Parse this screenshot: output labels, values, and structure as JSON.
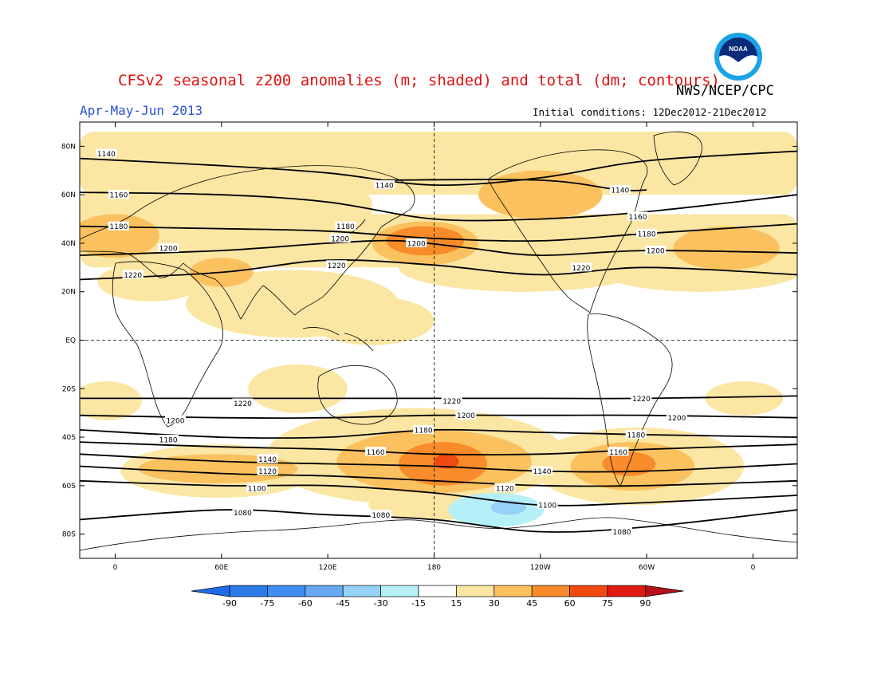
{
  "title": "CFSv2 seasonal z200 anomalies (m; shaded) and total (dm; contours)",
  "agency": "NWS/NCEP/CPC",
  "season": "Apr-May-Jun 2013",
  "initial_conditions": "Initial conditions: 12Dec2012-21Dec2012",
  "logo": {
    "text": "NOAA",
    "icon": "noaa-logo",
    "colors": {
      "outer": "#1aa3e6",
      "inner": "#0a2a7a",
      "bird": "#ffffff"
    }
  },
  "map": {
    "projection": "cylindrical-equidistant",
    "lon_range": [
      -20,
      385
    ],
    "lat_range": [
      -90,
      90
    ],
    "lat_ticks": [
      {
        "lat": 80,
        "label": "80N"
      },
      {
        "lat": 60,
        "label": "60N"
      },
      {
        "lat": 40,
        "label": "40N"
      },
      {
        "lat": 20,
        "label": "20N"
      },
      {
        "lat": 0,
        "label": "EQ"
      },
      {
        "lat": -20,
        "label": "20S"
      },
      {
        "lat": -40,
        "label": "40S"
      },
      {
        "lat": -60,
        "label": "60S"
      },
      {
        "lat": -80,
        "label": "80S"
      }
    ],
    "lon_ticks": [
      {
        "lon": 0,
        "label": "0"
      },
      {
        "lon": 60,
        "label": "60E"
      },
      {
        "lon": 120,
        "label": "120E"
      },
      {
        "lon": 180,
        "label": "180"
      },
      {
        "lon": 240,
        "label": "120W"
      },
      {
        "lon": 300,
        "label": "60W"
      },
      {
        "lon": 360,
        "label": "0"
      }
    ],
    "dashed_reference_lines": {
      "equator": true,
      "dateline_lon": 180
    }
  },
  "contours": [
    {
      "value": "1140",
      "pts": [
        [
          -20,
          75
        ],
        [
          60,
          72
        ],
        [
          120,
          69
        ],
        [
          180,
          64
        ],
        [
          240,
          67
        ],
        [
          300,
          74
        ],
        [
          385,
          78
        ]
      ],
      "labels": [
        [
          -5,
          77
        ]
      ]
    },
    {
      "value": "1140",
      "pts": [
        [
          150,
          66
        ],
        [
          240,
          66
        ],
        [
          285,
          62
        ],
        [
          300,
          62
        ]
      ],
      "labels": [
        [
          152,
          64
        ],
        [
          285,
          62
        ]
      ]
    },
    {
      "value": "1160",
      "pts": [
        [
          -20,
          61
        ],
        [
          60,
          60
        ],
        [
          120,
          57
        ],
        [
          180,
          50
        ],
        [
          240,
          50
        ],
        [
          300,
          53
        ],
        [
          385,
          60
        ]
      ],
      "labels": [
        [
          2,
          60
        ],
        [
          295,
          51
        ]
      ]
    },
    {
      "value": "1180",
      "pts": [
        [
          -20,
          47
        ],
        [
          60,
          46
        ],
        [
          120,
          45
        ],
        [
          180,
          42
        ],
        [
          240,
          41
        ],
        [
          300,
          44
        ],
        [
          385,
          48
        ]
      ],
      "labels": [
        [
          2,
          47
        ],
        [
          130,
          47
        ],
        [
          300,
          44
        ]
      ]
    },
    {
      "value": "1200",
      "pts": [
        [
          -20,
          35
        ],
        [
          60,
          37
        ],
        [
          120,
          40
        ],
        [
          160,
          41
        ],
        [
          200,
          38
        ],
        [
          240,
          35
        ],
        [
          300,
          37
        ],
        [
          385,
          36
        ]
      ],
      "labels": [
        [
          30,
          38
        ],
        [
          127,
          42
        ],
        [
          170,
          40
        ],
        [
          305,
          37
        ]
      ]
    },
    {
      "value": "1220",
      "pts": [
        [
          -20,
          25
        ],
        [
          60,
          28
        ],
        [
          120,
          33
        ],
        [
          180,
          31
        ],
        [
          240,
          27
        ],
        [
          300,
          30
        ],
        [
          385,
          27
        ]
      ],
      "labels": [
        [
          10,
          27
        ],
        [
          125,
          31
        ],
        [
          263,
          30
        ]
      ]
    },
    {
      "value": "1220",
      "pts": [
        [
          -20,
          -24
        ],
        [
          60,
          -24
        ],
        [
          120,
          -24
        ],
        [
          180,
          -24
        ],
        [
          240,
          -24
        ],
        [
          300,
          -24
        ],
        [
          385,
          -23
        ]
      ],
      "labels": [
        [
          72,
          -26
        ],
        [
          190,
          -25
        ],
        [
          297,
          -24
        ]
      ]
    },
    {
      "value": "1200",
      "pts": [
        [
          -20,
          -31
        ],
        [
          60,
          -32
        ],
        [
          120,
          -32
        ],
        [
          180,
          -31
        ],
        [
          240,
          -31
        ],
        [
          300,
          -31
        ],
        [
          385,
          -32
        ]
      ],
      "labels": [
        [
          34,
          -33
        ],
        [
          198,
          -31
        ],
        [
          317,
          -32
        ]
      ]
    },
    {
      "value": "1180",
      "pts": [
        [
          -20,
          -37
        ],
        [
          60,
          -40
        ],
        [
          120,
          -40
        ],
        [
          180,
          -37
        ],
        [
          240,
          -38
        ],
        [
          300,
          -39
        ],
        [
          385,
          -40
        ]
      ],
      "labels": [
        [
          30,
          -41
        ],
        [
          174,
          -37
        ],
        [
          294,
          -39
        ]
      ]
    },
    {
      "value": "1160",
      "pts": [
        [
          -20,
          -42
        ],
        [
          60,
          -44
        ],
        [
          120,
          -45
        ],
        [
          180,
          -47
        ],
        [
          240,
          -47
        ],
        [
          300,
          -45
        ],
        [
          385,
          -43
        ]
      ],
      "labels": [
        [
          147,
          -46
        ],
        [
          284,
          -46
        ]
      ]
    },
    {
      "value": "1140",
      "pts": [
        [
          -20,
          -47
        ],
        [
          60,
          -50
        ],
        [
          120,
          -51
        ],
        [
          180,
          -52
        ],
        [
          240,
          -54
        ],
        [
          300,
          -54
        ],
        [
          385,
          -51
        ]
      ],
      "labels": [
        [
          86,
          -49
        ],
        [
          241,
          -54
        ]
      ]
    },
    {
      "value": "1120",
      "pts": [
        [
          -20,
          -52
        ],
        [
          60,
          -55
        ],
        [
          120,
          -56
        ],
        [
          180,
          -58
        ],
        [
          240,
          -60
        ],
        [
          300,
          -60
        ],
        [
          385,
          -58
        ]
      ],
      "labels": [
        [
          86,
          -54
        ],
        [
          220,
          -61
        ]
      ]
    },
    {
      "value": "1100",
      "pts": [
        [
          -20,
          -58
        ],
        [
          60,
          -60
        ],
        [
          120,
          -60
        ],
        [
          180,
          -63
        ],
        [
          240,
          -68
        ],
        [
          300,
          -67
        ],
        [
          385,
          -64
        ]
      ],
      "labels": [
        [
          80,
          -61
        ],
        [
          244,
          -68
        ]
      ]
    },
    {
      "value": "1080",
      "pts": [
        [
          -20,
          -74
        ],
        [
          60,
          -70
        ],
        [
          120,
          -72
        ],
        [
          180,
          -74
        ],
        [
          240,
          -79
        ],
        [
          300,
          -77
        ],
        [
          385,
          -70
        ]
      ],
      "labels": [
        [
          72,
          -71
        ],
        [
          150,
          -72
        ],
        [
          286,
          -79
        ]
      ]
    }
  ],
  "anomaly_shading": [
    {
      "level": 15,
      "shapes": [
        {
          "type": "rect",
          "lon": [
            -20,
            385
          ],
          "lat": [
            60,
            86
          ]
        },
        {
          "type": "rect",
          "lon": [
            -20,
            145
          ],
          "lat": [
            30,
            62
          ]
        },
        {
          "type": "ell",
          "lon": 100,
          "lat": 15,
          "rlon": 60,
          "rlat": 14
        },
        {
          "type": "ell",
          "lon": 145,
          "lat": 8,
          "rlon": 35,
          "rlat": 10
        },
        {
          "type": "rect",
          "lon": [
            135,
            385
          ],
          "lat": [
            30,
            52
          ]
        },
        {
          "type": "ell",
          "lon": 230,
          "lat": 30,
          "rlon": 70,
          "rlat": 10
        },
        {
          "type": "ell",
          "lon": 330,
          "lat": 30,
          "rlon": 60,
          "rlat": 10
        },
        {
          "type": "ell",
          "lon": 20,
          "lat": 24,
          "rlon": 30,
          "rlat": 8
        },
        {
          "type": "ell",
          "lon": 170,
          "lat": -48,
          "rlon": 85,
          "rlat": 20
        },
        {
          "type": "ell",
          "lon": 295,
          "lat": -52,
          "rlon": 60,
          "rlat": 16
        },
        {
          "type": "ell",
          "lon": 58,
          "lat": -54,
          "rlon": 55,
          "rlat": 11
        },
        {
          "type": "ell",
          "lon": 103,
          "lat": -20,
          "rlon": 28,
          "rlat": 10
        },
        {
          "type": "ell",
          "lon": -5,
          "lat": -25,
          "rlon": 20,
          "rlat": 8
        },
        {
          "type": "ell",
          "lon": 355,
          "lat": -24,
          "rlon": 22,
          "rlat": 7
        },
        {
          "type": "ell",
          "lon": 183,
          "lat": -68,
          "rlon": 40,
          "rlat": 6
        }
      ]
    },
    {
      "level": 30,
      "shapes": [
        {
          "type": "ell",
          "lon": 0,
          "lat": 43,
          "rlon": 25,
          "rlat": 9
        },
        {
          "type": "ell",
          "lon": 240,
          "lat": 60,
          "rlon": 35,
          "rlat": 10
        },
        {
          "type": "ell",
          "lon": 175,
          "lat": 40,
          "rlon": 30,
          "rlat": 9
        },
        {
          "type": "ell",
          "lon": 345,
          "lat": 38,
          "rlon": 30,
          "rlat": 9
        },
        {
          "type": "ell",
          "lon": 60,
          "lat": 28,
          "rlon": 18,
          "rlat": 6
        },
        {
          "type": "ell",
          "lon": 58,
          "lat": -53,
          "rlon": 45,
          "rlat": 6
        },
        {
          "type": "ell",
          "lon": 180,
          "lat": -50,
          "rlon": 55,
          "rlat": 13
        },
        {
          "type": "ell",
          "lon": 292,
          "lat": -52,
          "rlon": 35,
          "rlat": 10
        }
      ]
    },
    {
      "level": 45,
      "shapes": [
        {
          "type": "ell",
          "lon": 175,
          "lat": 41,
          "rlon": 22,
          "rlat": 6
        },
        {
          "type": "ell",
          "lon": 185,
          "lat": -51,
          "rlon": 25,
          "rlat": 9
        },
        {
          "type": "ell",
          "lon": 290,
          "lat": -51,
          "rlon": 15,
          "rlat": 5
        }
      ]
    },
    {
      "level": 60,
      "shapes": [
        {
          "type": "ell",
          "lon": 187,
          "lat": -50,
          "rlon": 7,
          "rlat": 3
        }
      ]
    },
    {
      "level": -15,
      "shapes": [
        {
          "type": "ell",
          "lon": 215,
          "lat": -70,
          "rlon": 27,
          "rlat": 7
        }
      ]
    },
    {
      "level": -30,
      "shapes": [
        {
          "type": "ell",
          "lon": 222,
          "lat": -69,
          "rlon": 10,
          "rlat": 3
        }
      ]
    }
  ],
  "colorbar": {
    "labels": [
      "-90",
      "-75",
      "-60",
      "-45",
      "-30",
      "-15",
      "15",
      "30",
      "45",
      "60",
      "75",
      "90"
    ],
    "colors": [
      "#1e6ce6",
      "#2a7ae8",
      "#3f8ef0",
      "#66a8f3",
      "#96d2f8",
      "#b5f0f8",
      "#ffffff",
      "#fbe6a3",
      "#fbc15e",
      "#f88b2a",
      "#f04a10",
      "#e01a10",
      "#b8101a"
    ]
  },
  "shading_colors": {
    "15": "#fbe6a3",
    "30": "#fbc15e",
    "45": "#f88b2a",
    "60": "#f04a10",
    "-15": "#b5f0f8",
    "-30": "#96d2f8"
  }
}
